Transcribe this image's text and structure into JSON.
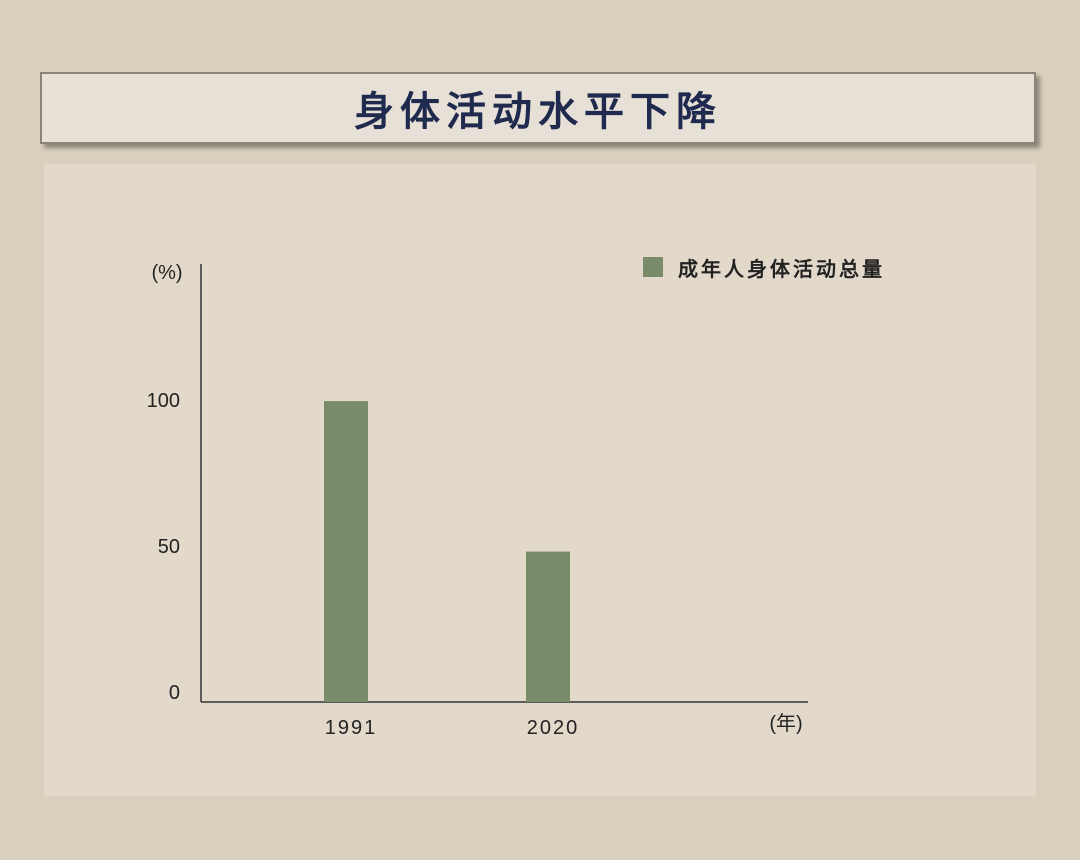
{
  "title": "身体活动水平下降",
  "chart_data": {
    "type": "bar",
    "title": "身体活动水平下降",
    "categories": [
      "1991",
      "2020"
    ],
    "series": [
      {
        "name": "成年人身体活动总量",
        "values": [
          102,
          51
        ],
        "color": "#7a8b6a"
      }
    ],
    "yticks": [
      "0",
      "50",
      "100"
    ],
    "ytick_values": [
      0,
      50,
      100
    ],
    "ylabel": "(%)",
    "xlabel": "(年)",
    "ylim": [
      0,
      150
    ],
    "grid": false,
    "legend_placement": "top-right"
  }
}
